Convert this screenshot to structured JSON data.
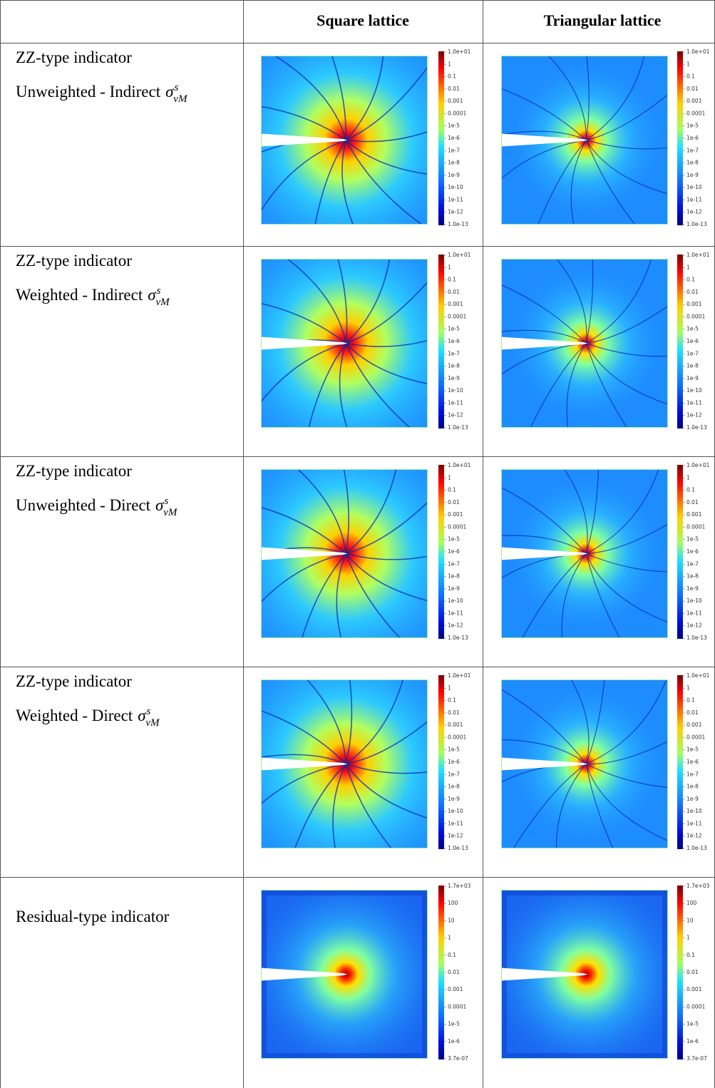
{
  "table": {
    "header": [
      "Square lattice",
      "Triangular lattice"
    ],
    "rows": [
      {
        "lines": [
          "ZZ-type indicator",
          "Unweighted - Indirect"
        ],
        "math": {
          "base": "σ",
          "sup": "s",
          "sub": "vM"
        },
        "colorbar": [
          "1.0e+01",
          "1",
          "0.1",
          "0.01",
          "0.001",
          "0.0001",
          "1e-5",
          "1e-6",
          "1e-7",
          "1e-8",
          "1e-9",
          "1e-10",
          "1e-11",
          "1e-12",
          "1.0e-13"
        ]
      },
      {
        "lines": [
          "ZZ-type indicator",
          "Weighted - Indirect"
        ],
        "math": {
          "base": "σ",
          "sup": "s",
          "sub": "vM"
        },
        "colorbar": [
          "1.0e+01",
          "1",
          "0.1",
          "0.01",
          "0.001",
          "0.0001",
          "1e-5",
          "1e-6",
          "1e-7",
          "1e-8",
          "1e-9",
          "1e-10",
          "1e-11",
          "1e-12",
          "1.0e-13"
        ]
      },
      {
        "lines": [
          "ZZ-type indicator",
          "Unweighted - Direct"
        ],
        "math": {
          "base": "σ",
          "sup": "s",
          "sub": "vM"
        },
        "colorbar": [
          "1.0e+01",
          "1",
          "0.1",
          "0.01",
          "0.001",
          "0.0001",
          "1e-5",
          "1e-6",
          "1e-7",
          "1e-8",
          "1e-9",
          "1e-10",
          "1e-11",
          "1e-12",
          "1.0e-13"
        ]
      },
      {
        "lines": [
          "ZZ-type indicator",
          "Weighted - Direct"
        ],
        "math": {
          "base": "σ",
          "sup": "s",
          "sub": "vM"
        },
        "colorbar": [
          "1.0e+01",
          "1",
          "0.1",
          "0.01",
          "0.001",
          "0.0001",
          "1e-5",
          "1e-6",
          "1e-7",
          "1e-8",
          "1e-9",
          "1e-10",
          "1e-11",
          "1e-12",
          "1.0e-13"
        ]
      },
      {
        "lines": [
          "Residual-type indicator"
        ],
        "colorbar": [
          "1.7e+03",
          "100",
          "10",
          "1",
          "0.1",
          "0.01",
          "0.001",
          "0.0001",
          "1e-5",
          "1e-6",
          "3.7e-07"
        ]
      }
    ]
  }
}
